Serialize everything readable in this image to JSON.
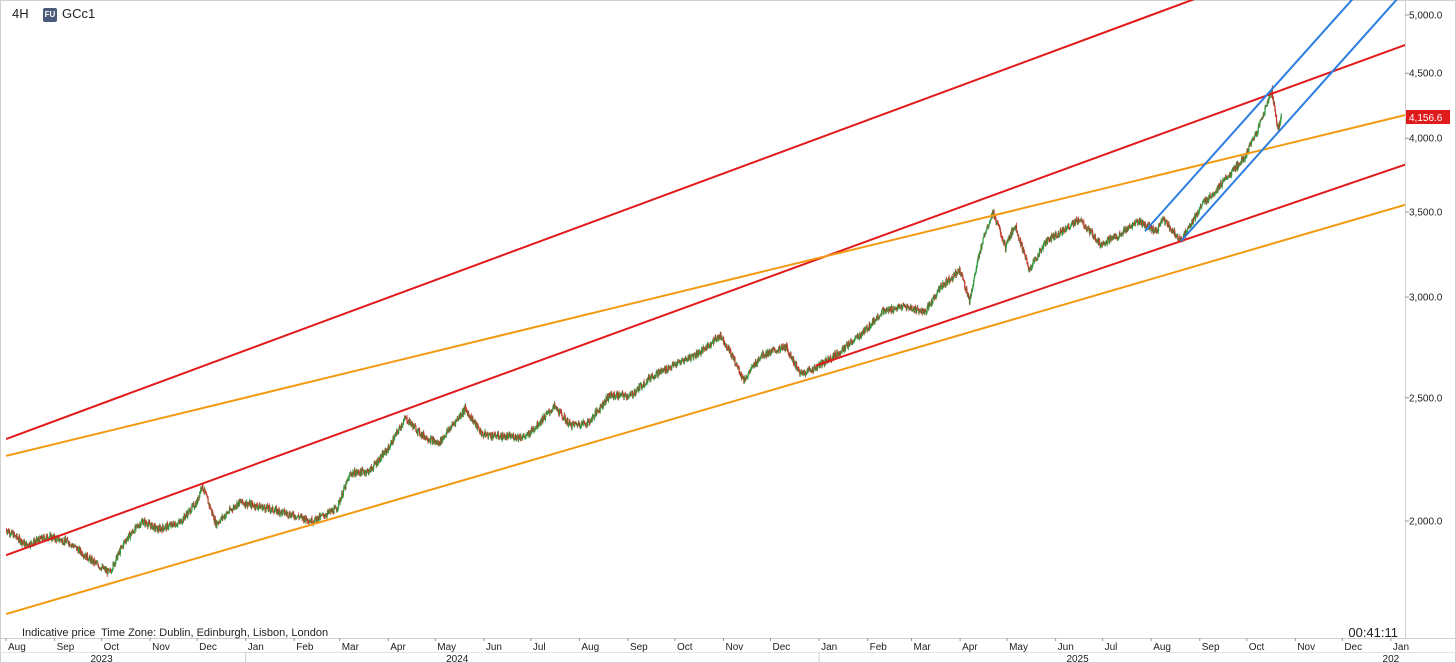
{
  "header": {
    "interval": "4H",
    "badge": "FU",
    "symbol": "GCc1"
  },
  "footer": {
    "note": "Indicative price",
    "timezone": "Time Zone: Dublin, Edinburgh, Lisbon, London",
    "clock": "00:41:11"
  },
  "colors": {
    "trend_red": "#e01b1b",
    "trend_orange": "#f39a12",
    "channel_blue": "#2b7de0",
    "candle_up": "#2e9a3e",
    "candle_down": "#c0392b",
    "price_badge": "#e01b1b"
  },
  "chart_data": {
    "type": "line",
    "scale": "log",
    "grid": false,
    "ylim": [
      1650,
      5000
    ],
    "xlim": [
      "2023-08-01",
      "2026-01-10"
    ],
    "yticks": [
      {
        "value": 2000,
        "label": "2,000.0"
      },
      {
        "value": 2500,
        "label": "2,500.0"
      },
      {
        "value": 3000,
        "label": "3,000.0"
      },
      {
        "value": 3500,
        "label": "3,500.0"
      },
      {
        "value": 4000,
        "label": "4,000.0"
      },
      {
        "value": 4500,
        "label": "4,500.0"
      },
      {
        "value": 5000,
        "label": "5,000.0"
      }
    ],
    "month_ticks": [
      {
        "date": "2023-08-01",
        "label": "Aug"
      },
      {
        "date": "2023-09-01",
        "label": "Sep"
      },
      {
        "date": "2023-10-01",
        "label": "Oct"
      },
      {
        "date": "2023-11-01",
        "label": "Nov"
      },
      {
        "date": "2023-12-01",
        "label": "Dec"
      },
      {
        "date": "2024-01-01",
        "label": "Jan"
      },
      {
        "date": "2024-02-01",
        "label": "Feb"
      },
      {
        "date": "2024-03-01",
        "label": "Mar"
      },
      {
        "date": "2024-04-01",
        "label": "Apr"
      },
      {
        "date": "2024-05-01",
        "label": "May"
      },
      {
        "date": "2024-06-01",
        "label": "Jun"
      },
      {
        "date": "2024-07-01",
        "label": "Jul"
      },
      {
        "date": "2024-08-01",
        "label": "Aug"
      },
      {
        "date": "2024-09-01",
        "label": "Sep"
      },
      {
        "date": "2024-10-01",
        "label": "Oct"
      },
      {
        "date": "2024-11-01",
        "label": "Nov"
      },
      {
        "date": "2024-12-01",
        "label": "Dec"
      },
      {
        "date": "2025-01-01",
        "label": "Jan"
      },
      {
        "date": "2025-02-01",
        "label": "Feb"
      },
      {
        "date": "2025-03-01",
        "label": "Mar"
      },
      {
        "date": "2025-04-01",
        "label": "Apr"
      },
      {
        "date": "2025-05-01",
        "label": "May"
      },
      {
        "date": "2025-06-01",
        "label": "Jun"
      },
      {
        "date": "2025-07-01",
        "label": "Jul"
      },
      {
        "date": "2025-08-01",
        "label": "Aug"
      },
      {
        "date": "2025-09-01",
        "label": "Sep"
      },
      {
        "date": "2025-10-01",
        "label": "Oct"
      },
      {
        "date": "2025-11-01",
        "label": "Nov"
      },
      {
        "date": "2025-12-01",
        "label": "Dec"
      },
      {
        "date": "2026-01-01",
        "label": "Jan"
      }
    ],
    "year_ticks": [
      {
        "date": "2023-10-01",
        "label": "2023"
      },
      {
        "date": "2024-05-15",
        "label": "2024"
      },
      {
        "date": "2025-06-15",
        "label": "2025"
      },
      {
        "date": "2026-01-01",
        "label": "202"
      }
    ],
    "last_price": {
      "value": 4156.6,
      "label": "4,156.6"
    },
    "price_path": [
      [
        "2023-08-01",
        1970
      ],
      [
        "2023-08-14",
        1915
      ],
      [
        "2023-08-28",
        1945
      ],
      [
        "2023-09-10",
        1925
      ],
      [
        "2023-09-25",
        1860
      ],
      [
        "2023-10-06",
        1820
      ],
      [
        "2023-10-16",
        1930
      ],
      [
        "2023-10-27",
        2000
      ],
      [
        "2023-11-06",
        1970
      ],
      [
        "2023-11-20",
        1995
      ],
      [
        "2023-12-01",
        2070
      ],
      [
        "2023-12-04",
        2135
      ],
      [
        "2023-12-13",
        1990
      ],
      [
        "2023-12-28",
        2070
      ],
      [
        "2024-01-12",
        2050
      ],
      [
        "2024-01-26",
        2030
      ],
      [
        "2024-02-13",
        2000
      ],
      [
        "2024-02-28",
        2045
      ],
      [
        "2024-03-08",
        2180
      ],
      [
        "2024-03-20",
        2190
      ],
      [
        "2024-04-01",
        2280
      ],
      [
        "2024-04-12",
        2410
      ],
      [
        "2024-04-22",
        2340
      ],
      [
        "2024-05-03",
        2300
      ],
      [
        "2024-05-20",
        2450
      ],
      [
        "2024-05-31",
        2340
      ],
      [
        "2024-06-14",
        2330
      ],
      [
        "2024-06-28",
        2330
      ],
      [
        "2024-07-16",
        2460
      ],
      [
        "2024-07-26",
        2380
      ],
      [
        "2024-08-07",
        2390
      ],
      [
        "2024-08-20",
        2510
      ],
      [
        "2024-09-03",
        2510
      ],
      [
        "2024-09-16",
        2600
      ],
      [
        "2024-09-30",
        2650
      ],
      [
        "2024-10-18",
        2720
      ],
      [
        "2024-10-30",
        2800
      ],
      [
        "2024-11-05",
        2720
      ],
      [
        "2024-11-14",
        2580
      ],
      [
        "2024-11-25",
        2700
      ],
      [
        "2024-12-11",
        2740
      ],
      [
        "2024-12-20",
        2610
      ],
      [
        "2024-12-30",
        2640
      ],
      [
        "2025-01-15",
        2720
      ],
      [
        "2025-01-30",
        2820
      ],
      [
        "2025-02-10",
        2920
      ],
      [
        "2025-02-24",
        2950
      ],
      [
        "2025-03-10",
        2920
      ],
      [
        "2025-03-20",
        3060
      ],
      [
        "2025-04-01",
        3150
      ],
      [
        "2025-04-07",
        2980
      ],
      [
        "2025-04-16",
        3350
      ],
      [
        "2025-04-22",
        3500
      ],
      [
        "2025-04-30",
        3280
      ],
      [
        "2025-05-06",
        3420
      ],
      [
        "2025-05-15",
        3150
      ],
      [
        "2025-05-26",
        3320
      ],
      [
        "2025-06-05",
        3380
      ],
      [
        "2025-06-16",
        3450
      ],
      [
        "2025-06-30",
        3300
      ],
      [
        "2025-07-14",
        3370
      ],
      [
        "2025-07-23",
        3440
      ],
      [
        "2025-08-05",
        3380
      ],
      [
        "2025-08-08",
        3460
      ],
      [
        "2025-08-20",
        3320
      ],
      [
        "2025-09-03",
        3550
      ],
      [
        "2025-09-15",
        3680
      ],
      [
        "2025-09-30",
        3870
      ],
      [
        "2025-10-08",
        4060
      ],
      [
        "2025-10-17",
        4360
      ],
      [
        "2025-10-21",
        4060
      ],
      [
        "2025-10-23",
        4156.6
      ]
    ],
    "trendlines": [
      {
        "color": "red",
        "p1": [
          "2023-08-01",
          2320
        ],
        "p2": [
          "2025-08-20",
          5100
        ],
        "extend": true
      },
      {
        "color": "red",
        "p1": [
          "2023-08-01",
          1880
        ],
        "p2": [
          "2025-10-20",
          4350
        ],
        "extend": true
      },
      {
        "color": "red",
        "p1": [
          "2024-12-30",
          2650
        ],
        "p2": [
          "2025-08-20",
          3320
        ],
        "extend": true
      },
      {
        "color": "orange",
        "p1": [
          "2023-08-01",
          2250
        ],
        "p2": [
          "2025-04-23",
          3480
        ],
        "extend": true
      },
      {
        "color": "orange",
        "p1": [
          "2023-08-01",
          1690
        ],
        "p2": [
          "2024-02-20",
          2000
        ],
        "extend": true
      },
      {
        "color": "blue",
        "p1": [
          "2025-07-28",
          3380
        ],
        "p2": [
          "2025-10-17",
          4370
        ],
        "extend": true
      },
      {
        "color": "blue",
        "p1": [
          "2025-08-20",
          3320
        ],
        "p2": [
          "2025-10-20",
          4030
        ],
        "extend": true
      }
    ]
  }
}
